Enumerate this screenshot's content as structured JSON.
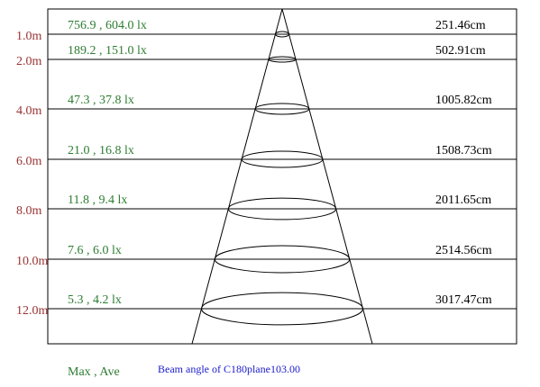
{
  "rows": [
    {
      "distance": "1.0m",
      "illuminance": "756.9 , 604.0 lx",
      "diameter": "251.46cm"
    },
    {
      "distance": "2.0m",
      "illuminance": "189.2 , 151.0 lx",
      "diameter": "502.91cm"
    },
    {
      "distance": "4.0m",
      "illuminance": "47.3 , 37.8 lx",
      "diameter": "1005.82cm"
    },
    {
      "distance": "6.0m",
      "illuminance": "21.0 , 16.8 lx",
      "diameter": "1508.73cm"
    },
    {
      "distance": "8.0m",
      "illuminance": "11.8 , 9.4 lx",
      "diameter": "2011.65cm"
    },
    {
      "distance": "10.0m",
      "illuminance": "7.6 , 6.0 lx",
      "diameter": "2514.56cm"
    },
    {
      "distance": "12.0m",
      "illuminance": "5.3 , 4.2 lx",
      "diameter": "3017.47cm"
    }
  ],
  "legend": "Max , Ave",
  "beam_angle": "Beam angle of C180plane103.00"
}
